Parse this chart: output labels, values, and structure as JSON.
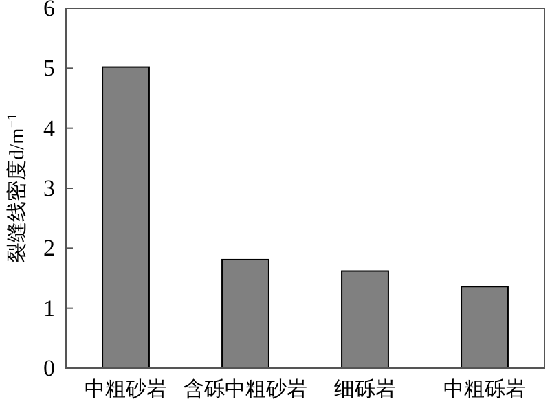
{
  "chart_data": {
    "type": "bar",
    "ylabel": "裂缝线密度d/m$^{−1}$",
    "categories": [
      "中粗砂岩",
      "含砾中粗砂岩",
      "细砾岩",
      "中粗砾岩"
    ],
    "values": [
      5.02,
      1.81,
      1.62,
      1.36
    ],
    "color": "#808080",
    "ylim": [
      0,
      6
    ],
    "yticks": [
      0,
      1,
      2,
      3,
      4,
      5,
      6
    ],
    "grid": false
  }
}
